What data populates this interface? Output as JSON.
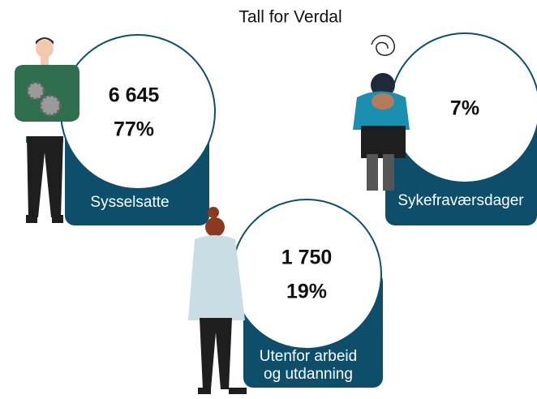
{
  "title": "Tall for Verdal",
  "cards": [
    {
      "values": [
        "6 645",
        "77%"
      ],
      "label": [
        "Sysselsatte"
      ]
    },
    {
      "values": [
        "7%"
      ],
      "label": [
        "Sykefraværsdager"
      ]
    },
    {
      "values": [
        "1 750",
        "19%"
      ],
      "label": [
        "Utenfor arbeid",
        "og utdanning"
      ]
    }
  ]
}
